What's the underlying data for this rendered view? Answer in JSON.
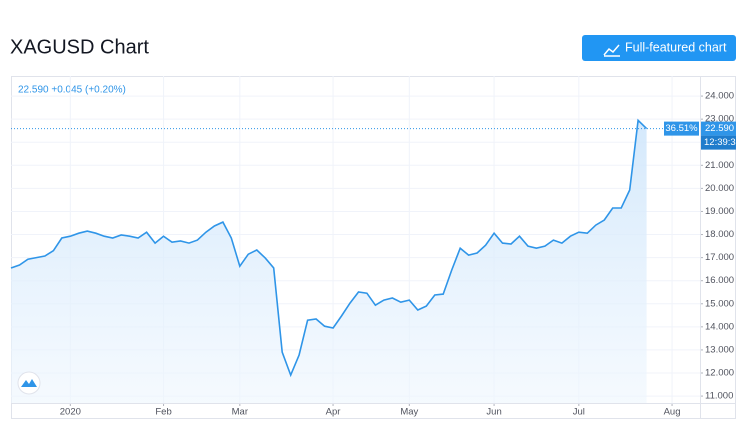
{
  "header": {
    "title": "XAGUSD Chart",
    "button": "Full-featured chart"
  },
  "chart_data": {
    "type": "line",
    "legend_text": "22.590 +0.045 (+0.20%)",
    "categories": [
      null,
      null,
      null,
      null,
      null,
      null,
      null,
      "2020",
      null,
      null,
      null,
      null,
      null,
      null,
      null,
      null,
      null,
      null,
      "Feb",
      null,
      null,
      null,
      null,
      null,
      null,
      null,
      null,
      "Mar",
      null,
      null,
      null,
      null,
      null,
      null,
      null,
      null,
      null,
      null,
      "Apr",
      null,
      null,
      null,
      null,
      null,
      null,
      null,
      null,
      "May",
      null,
      null,
      null,
      null,
      null,
      null,
      null,
      null,
      null,
      "Jun",
      null,
      null,
      null,
      null,
      null,
      null,
      null,
      null,
      null,
      "Jul",
      null,
      null,
      null,
      null,
      null,
      null,
      null,
      null,
      null,
      null,
      "Aug",
      null,
      null
    ],
    "series": [
      {
        "name": "XAGUSD",
        "color": "#2f95e8",
        "values": [
          16.55,
          16.68,
          16.93,
          17.0,
          17.07,
          17.3,
          17.85,
          17.93,
          18.06,
          18.15,
          18.06,
          17.93,
          17.85,
          17.98,
          17.93,
          17.85,
          18.1,
          17.63,
          17.93,
          17.67,
          17.72,
          17.63,
          17.76,
          18.1,
          18.37,
          18.54,
          17.85,
          16.63,
          17.15,
          17.33,
          16.98,
          16.55,
          12.9,
          11.91,
          12.78,
          14.29,
          14.34,
          14.03,
          13.95,
          14.47,
          15.03,
          15.51,
          15.46,
          14.94,
          15.16,
          15.25,
          15.07,
          15.16,
          14.73,
          14.9,
          15.38,
          15.42,
          16.46,
          17.41,
          17.11,
          17.2,
          17.54,
          18.06,
          17.63,
          17.59,
          17.93,
          17.5,
          17.41,
          17.5,
          17.76,
          17.63,
          17.93,
          18.1,
          18.06,
          18.41,
          18.63,
          19.15,
          19.15,
          19.93,
          22.95,
          22.59,
          null,
          null,
          null,
          null,
          null
        ]
      }
    ],
    "price_line": {
      "value": 22.59,
      "label": "22.590"
    },
    "change_label": "36.51%",
    "time_label": "12:39:3",
    "ylim": [
      10.7,
      24.87
    ],
    "yticks": [
      {
        "value": 11,
        "label": "11.000"
      },
      {
        "value": 12,
        "label": "12.000"
      },
      {
        "value": 13,
        "label": "13.000"
      },
      {
        "value": 14,
        "label": "14.000"
      },
      {
        "value": 15,
        "label": "15.000"
      },
      {
        "value": 16,
        "label": "16.000"
      },
      {
        "value": 17,
        "label": "17.000"
      },
      {
        "value": 18,
        "label": "18.000"
      },
      {
        "value": 19,
        "label": "19.000"
      },
      {
        "value": 20,
        "label": "20.000"
      },
      {
        "value": 21,
        "label": "21.000"
      },
      {
        "value": 22,
        "label": "22.000"
      },
      {
        "value": 23,
        "label": "23.000"
      },
      {
        "value": 24,
        "label": "24.000"
      }
    ],
    "grid": true
  }
}
